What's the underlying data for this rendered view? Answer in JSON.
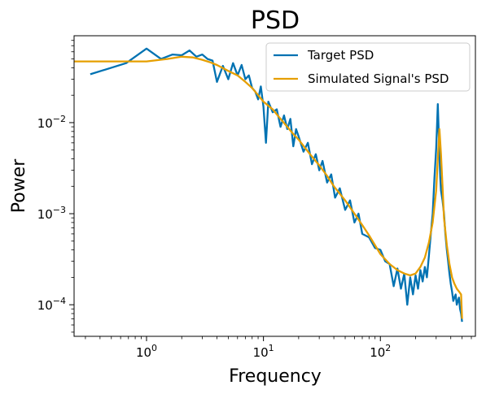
{
  "chart_data": {
    "type": "line",
    "title": "PSD",
    "xlabel": "Frequency",
    "ylabel": "Power",
    "xscale": "log",
    "yscale": "log",
    "xlim": [
      0.24,
      650
    ],
    "ylim": [
      4.5e-05,
      0.09
    ],
    "grid": false,
    "legend_position": "upper-right",
    "xticks": [
      {
        "value": 1,
        "base": "10",
        "exp": "0"
      },
      {
        "value": 10,
        "base": "10",
        "exp": "1"
      },
      {
        "value": 100,
        "base": "10",
        "exp": "2"
      }
    ],
    "yticks": [
      {
        "value": 0.0001,
        "base": "10",
        "exp": "−4"
      },
      {
        "value": 0.001,
        "base": "10",
        "exp": "−3"
      },
      {
        "value": 0.01,
        "base": "10",
        "exp": "−2"
      }
    ],
    "series": [
      {
        "name": "Target PSD",
        "color": "#0072b2",
        "x": [
          0.33,
          0.67,
          1.0,
          1.33,
          1.67,
          2.0,
          2.33,
          2.67,
          3.0,
          3.33,
          3.67,
          4.0,
          4.5,
          5.0,
          5.5,
          6.0,
          6.5,
          7.0,
          7.5,
          8.0,
          8.5,
          9.0,
          9.5,
          10.0,
          10.5,
          11.0,
          12.0,
          13.0,
          14.0,
          15.0,
          16.0,
          17.0,
          18.0,
          19.0,
          20.0,
          22.0,
          24.0,
          26.0,
          28.0,
          30.0,
          32.0,
          35.0,
          38.0,
          41.0,
          45.0,
          50.0,
          55.0,
          60.0,
          65.0,
          70.0,
          80.0,
          90.0,
          100.0,
          110.0,
          120.0,
          130.0,
          140.0,
          150.0,
          160.0,
          170.0,
          180.0,
          190.0,
          200.0,
          210.0,
          220.0,
          230.0,
          240.0,
          250.0,
          260.0,
          270.0,
          280.0,
          290.0,
          300.0,
          305.0,
          310.0,
          315.0,
          320.0,
          325.0,
          330.0,
          340.0,
          350.0,
          360.0,
          370.0,
          380.0,
          390.0,
          400.0,
          410.0,
          420.0,
          430.0,
          440.0,
          450.0,
          460.0,
          470.0,
          480.0,
          490.0,
          500.0
        ],
        "y": [
          0.034,
          0.045,
          0.065,
          0.05,
          0.056,
          0.055,
          0.062,
          0.053,
          0.056,
          0.05,
          0.048,
          0.028,
          0.042,
          0.03,
          0.045,
          0.033,
          0.043,
          0.03,
          0.033,
          0.024,
          0.022,
          0.018,
          0.025,
          0.015,
          0.006,
          0.017,
          0.013,
          0.014,
          0.009,
          0.012,
          0.0085,
          0.011,
          0.0055,
          0.0085,
          0.007,
          0.0048,
          0.006,
          0.0035,
          0.0045,
          0.003,
          0.0038,
          0.0022,
          0.0027,
          0.0015,
          0.0019,
          0.0011,
          0.0014,
          0.0008,
          0.001,
          0.0006,
          0.00055,
          0.00042,
          0.0004,
          0.0003,
          0.00028,
          0.00016,
          0.00025,
          0.00015,
          0.00022,
          0.0001,
          0.0002,
          0.00013,
          0.00021,
          0.00015,
          0.00024,
          0.00018,
          0.00026,
          0.0002,
          0.00034,
          0.0006,
          0.001,
          0.0025,
          0.0052,
          0.009,
          0.016,
          0.0085,
          0.0045,
          0.0025,
          0.0018,
          0.0014,
          0.001,
          0.0006,
          0.0004,
          0.0003,
          0.00022,
          0.00017,
          0.00014,
          0.00011,
          0.00012,
          0.00013,
          0.0001,
          0.00011,
          0.00012,
          9e-05,
          8e-05,
          6.5e-05
        ]
      },
      {
        "name": "Simulated Signal's PSD",
        "color": "#e69f00",
        "x": [
          0.24,
          0.5,
          1.0,
          1.5,
          2.0,
          2.5,
          3.0,
          3.5,
          4.0,
          5.0,
          6.0,
          7.0,
          8.0,
          9.0,
          10.0,
          12.0,
          14.0,
          16.0,
          18.0,
          20.0,
          25.0,
          30.0,
          35.0,
          40.0,
          50.0,
          60.0,
          70.0,
          80.0,
          90.0,
          100.0,
          120.0,
          140.0,
          160.0,
          180.0,
          200.0,
          220.0,
          240.0,
          260.0,
          280.0,
          300.0,
          310.0,
          320.0,
          330.0,
          340.0,
          350.0,
          370.0,
          390.0,
          410.0,
          430.0,
          450.0,
          470.0,
          490.0,
          500.0
        ],
        "y": [
          0.047,
          0.047,
          0.047,
          0.05,
          0.053,
          0.052,
          0.049,
          0.046,
          0.043,
          0.037,
          0.033,
          0.028,
          0.024,
          0.02,
          0.017,
          0.014,
          0.011,
          0.009,
          0.0075,
          0.0065,
          0.0045,
          0.0034,
          0.0026,
          0.002,
          0.0014,
          0.001,
          0.00075,
          0.00058,
          0.00045,
          0.00036,
          0.00028,
          0.00024,
          0.00022,
          0.00021,
          0.00022,
          0.00026,
          0.00033,
          0.00048,
          0.0008,
          0.0018,
          0.004,
          0.0085,
          0.0045,
          0.002,
          0.0009,
          0.00045,
          0.00028,
          0.0002,
          0.00017,
          0.00015,
          0.00014,
          0.00013,
          7e-05
        ]
      }
    ]
  }
}
